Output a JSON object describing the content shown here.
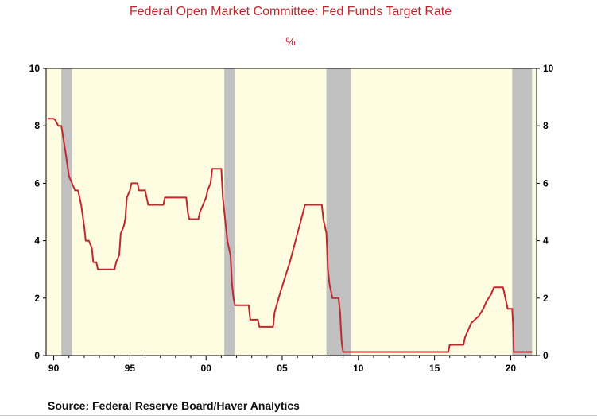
{
  "chart_data": {
    "type": "line",
    "title": "Federal Open Market Committee: Fed Funds Target Rate",
    "subtitle": "%",
    "source": "Source:  Federal Reserve Board/Haver Analytics",
    "xlim": [
      1989.5,
      2021.7
    ],
    "ylim": [
      0,
      10
    ],
    "y_ticks": [
      0,
      2,
      4,
      6,
      8,
      10
    ],
    "x_ticks": [
      {
        "value": 1990,
        "label": "90"
      },
      {
        "value": 1995,
        "label": "95"
      },
      {
        "value": 2000,
        "label": "00"
      },
      {
        "value": 2005,
        "label": "05"
      },
      {
        "value": 2010,
        "label": "10"
      },
      {
        "value": 2015,
        "label": "15"
      },
      {
        "value": 2020,
        "label": "20"
      }
    ],
    "recessions": [
      [
        1990.5,
        1991.2
      ],
      [
        2001.2,
        2001.9
      ],
      [
        2007.9,
        2009.5
      ],
      [
        2020.1,
        2021.4
      ]
    ],
    "colors": {
      "line": "#c0282d",
      "plot_bg": "#fffde1",
      "recession": "#c0c0c0",
      "title": "#c0282d"
    },
    "series": [
      {
        "name": "",
        "values": [
          [
            1989.6,
            8.25
          ],
          [
            1990.0,
            8.25
          ],
          [
            1990.1,
            8.2
          ],
          [
            1990.3,
            8.0
          ],
          [
            1990.5,
            8.0
          ],
          [
            1990.8,
            7.0
          ],
          [
            1991.0,
            6.25
          ],
          [
            1991.2,
            6.0
          ],
          [
            1991.4,
            5.75
          ],
          [
            1991.6,
            5.75
          ],
          [
            1991.8,
            5.25
          ],
          [
            1992.0,
            4.5
          ],
          [
            1992.1,
            4.0
          ],
          [
            1992.3,
            4.0
          ],
          [
            1992.5,
            3.75
          ],
          [
            1992.6,
            3.25
          ],
          [
            1992.8,
            3.25
          ],
          [
            1992.9,
            3.0
          ],
          [
            1994.0,
            3.0
          ],
          [
            1994.1,
            3.25
          ],
          [
            1994.3,
            3.5
          ],
          [
            1994.4,
            4.25
          ],
          [
            1994.6,
            4.5
          ],
          [
            1994.7,
            4.75
          ],
          [
            1994.8,
            5.5
          ],
          [
            1995.0,
            5.75
          ],
          [
            1995.1,
            6.0
          ],
          [
            1995.5,
            6.0
          ],
          [
            1995.6,
            5.75
          ],
          [
            1996.0,
            5.75
          ],
          [
            1996.1,
            5.5
          ],
          [
            1996.2,
            5.25
          ],
          [
            1997.2,
            5.25
          ],
          [
            1997.3,
            5.5
          ],
          [
            1998.7,
            5.5
          ],
          [
            1998.8,
            5.0
          ],
          [
            1998.9,
            4.75
          ],
          [
            1999.5,
            4.75
          ],
          [
            1999.6,
            5.0
          ],
          [
            1999.8,
            5.25
          ],
          [
            2000.0,
            5.5
          ],
          [
            2000.1,
            5.75
          ],
          [
            2000.3,
            6.0
          ],
          [
            2000.4,
            6.5
          ],
          [
            2001.0,
            6.5
          ],
          [
            2001.1,
            5.5
          ],
          [
            2001.2,
            5.0
          ],
          [
            2001.3,
            4.5
          ],
          [
            2001.4,
            4.0
          ],
          [
            2001.5,
            3.75
          ],
          [
            2001.6,
            3.5
          ],
          [
            2001.7,
            2.5
          ],
          [
            2001.8,
            2.0
          ],
          [
            2001.9,
            1.75
          ],
          [
            2002.8,
            1.75
          ],
          [
            2002.9,
            1.25
          ],
          [
            2003.4,
            1.25
          ],
          [
            2003.5,
            1.0
          ],
          [
            2004.4,
            1.0
          ],
          [
            2004.5,
            1.5
          ],
          [
            2004.9,
            2.25
          ],
          [
            2005.5,
            3.25
          ],
          [
            2006.0,
            4.25
          ],
          [
            2006.5,
            5.25
          ],
          [
            2007.6,
            5.25
          ],
          [
            2007.7,
            4.75
          ],
          [
            2007.8,
            4.5
          ],
          [
            2007.9,
            4.25
          ],
          [
            2008.0,
            3.0
          ],
          [
            2008.1,
            2.5
          ],
          [
            2008.3,
            2.0
          ],
          [
            2008.7,
            2.0
          ],
          [
            2008.8,
            1.5
          ],
          [
            2008.9,
            0.5
          ],
          [
            2009.0,
            0.125
          ],
          [
            2015.9,
            0.125
          ],
          [
            2016.0,
            0.375
          ],
          [
            2016.9,
            0.375
          ],
          [
            2017.0,
            0.625
          ],
          [
            2017.2,
            0.875
          ],
          [
            2017.4,
            1.125
          ],
          [
            2017.9,
            1.375
          ],
          [
            2018.2,
            1.625
          ],
          [
            2018.4,
            1.875
          ],
          [
            2018.7,
            2.125
          ],
          [
            2018.9,
            2.375
          ],
          [
            2019.5,
            2.375
          ],
          [
            2019.6,
            2.125
          ],
          [
            2019.7,
            1.875
          ],
          [
            2019.8,
            1.625
          ],
          [
            2020.1,
            1.625
          ],
          [
            2020.15,
            1.125
          ],
          [
            2020.2,
            0.125
          ],
          [
            2021.4,
            0.125
          ]
        ]
      }
    ]
  }
}
